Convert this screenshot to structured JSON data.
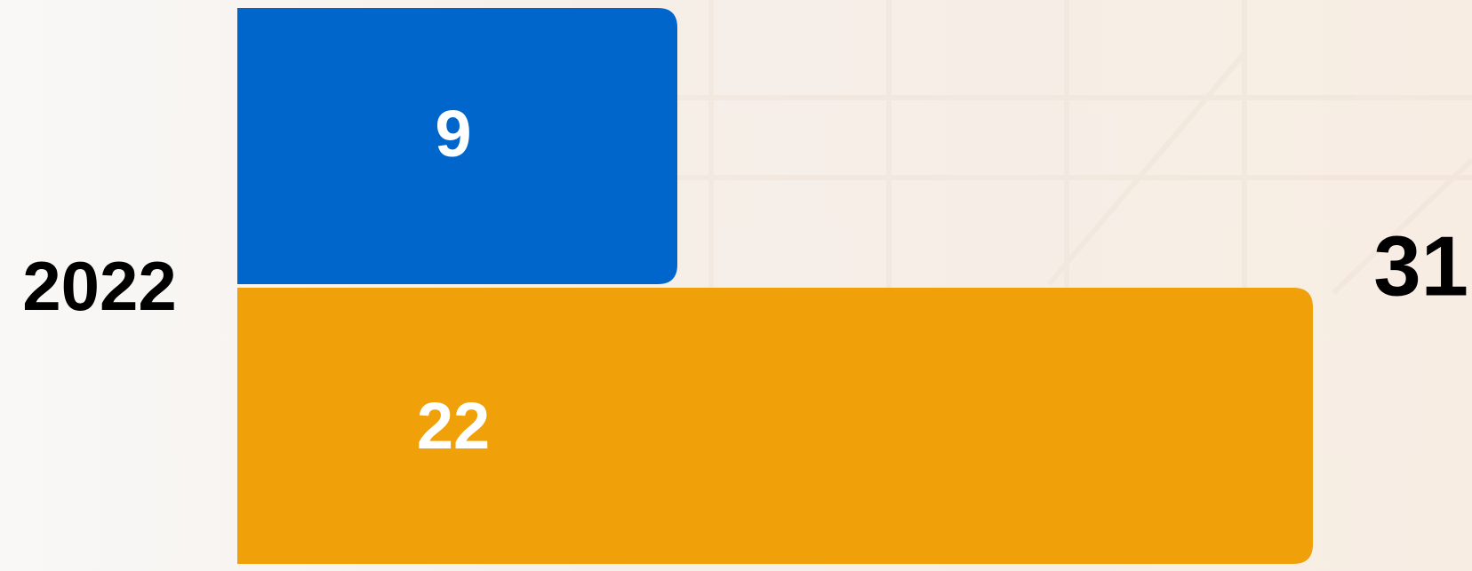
{
  "chart_data": {
    "type": "bar",
    "categories": [
      "2022"
    ],
    "series": [
      {
        "color": "#0066cc",
        "values": [
          9
        ]
      },
      {
        "color": "#f0a008",
        "values": [
          22
        ]
      }
    ],
    "totals": [
      31
    ]
  }
}
